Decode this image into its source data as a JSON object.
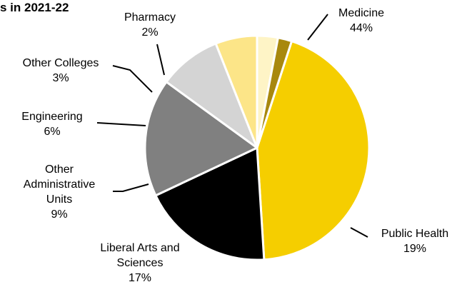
{
  "chart_data": {
    "type": "pie",
    "title": "s in 2021-22",
    "slices": [
      {
        "name": "Medicine",
        "value": 44,
        "value_label": "44%",
        "color": "#F5CE00"
      },
      {
        "name": "Public Health",
        "value": 19,
        "value_label": "19%",
        "color": "#000000"
      },
      {
        "name": "Liberal Arts and Sciences",
        "value": 17,
        "value_label": "17%",
        "color": "#808080"
      },
      {
        "name": "Other Administrative Units",
        "value": 9,
        "value_label": "9%",
        "color": "#D4D4D4"
      },
      {
        "name": "Engineering",
        "value": 6,
        "value_label": "6%",
        "color": "#FCE588"
      },
      {
        "name": "Other Colleges",
        "value": 3,
        "value_label": "3%",
        "color": "#FEF4C6"
      },
      {
        "name": "Pharmacy",
        "value": 2,
        "value_label": "2%",
        "color": "#A8880E"
      }
    ],
    "legend": "none",
    "label_style": "leader-lines"
  }
}
